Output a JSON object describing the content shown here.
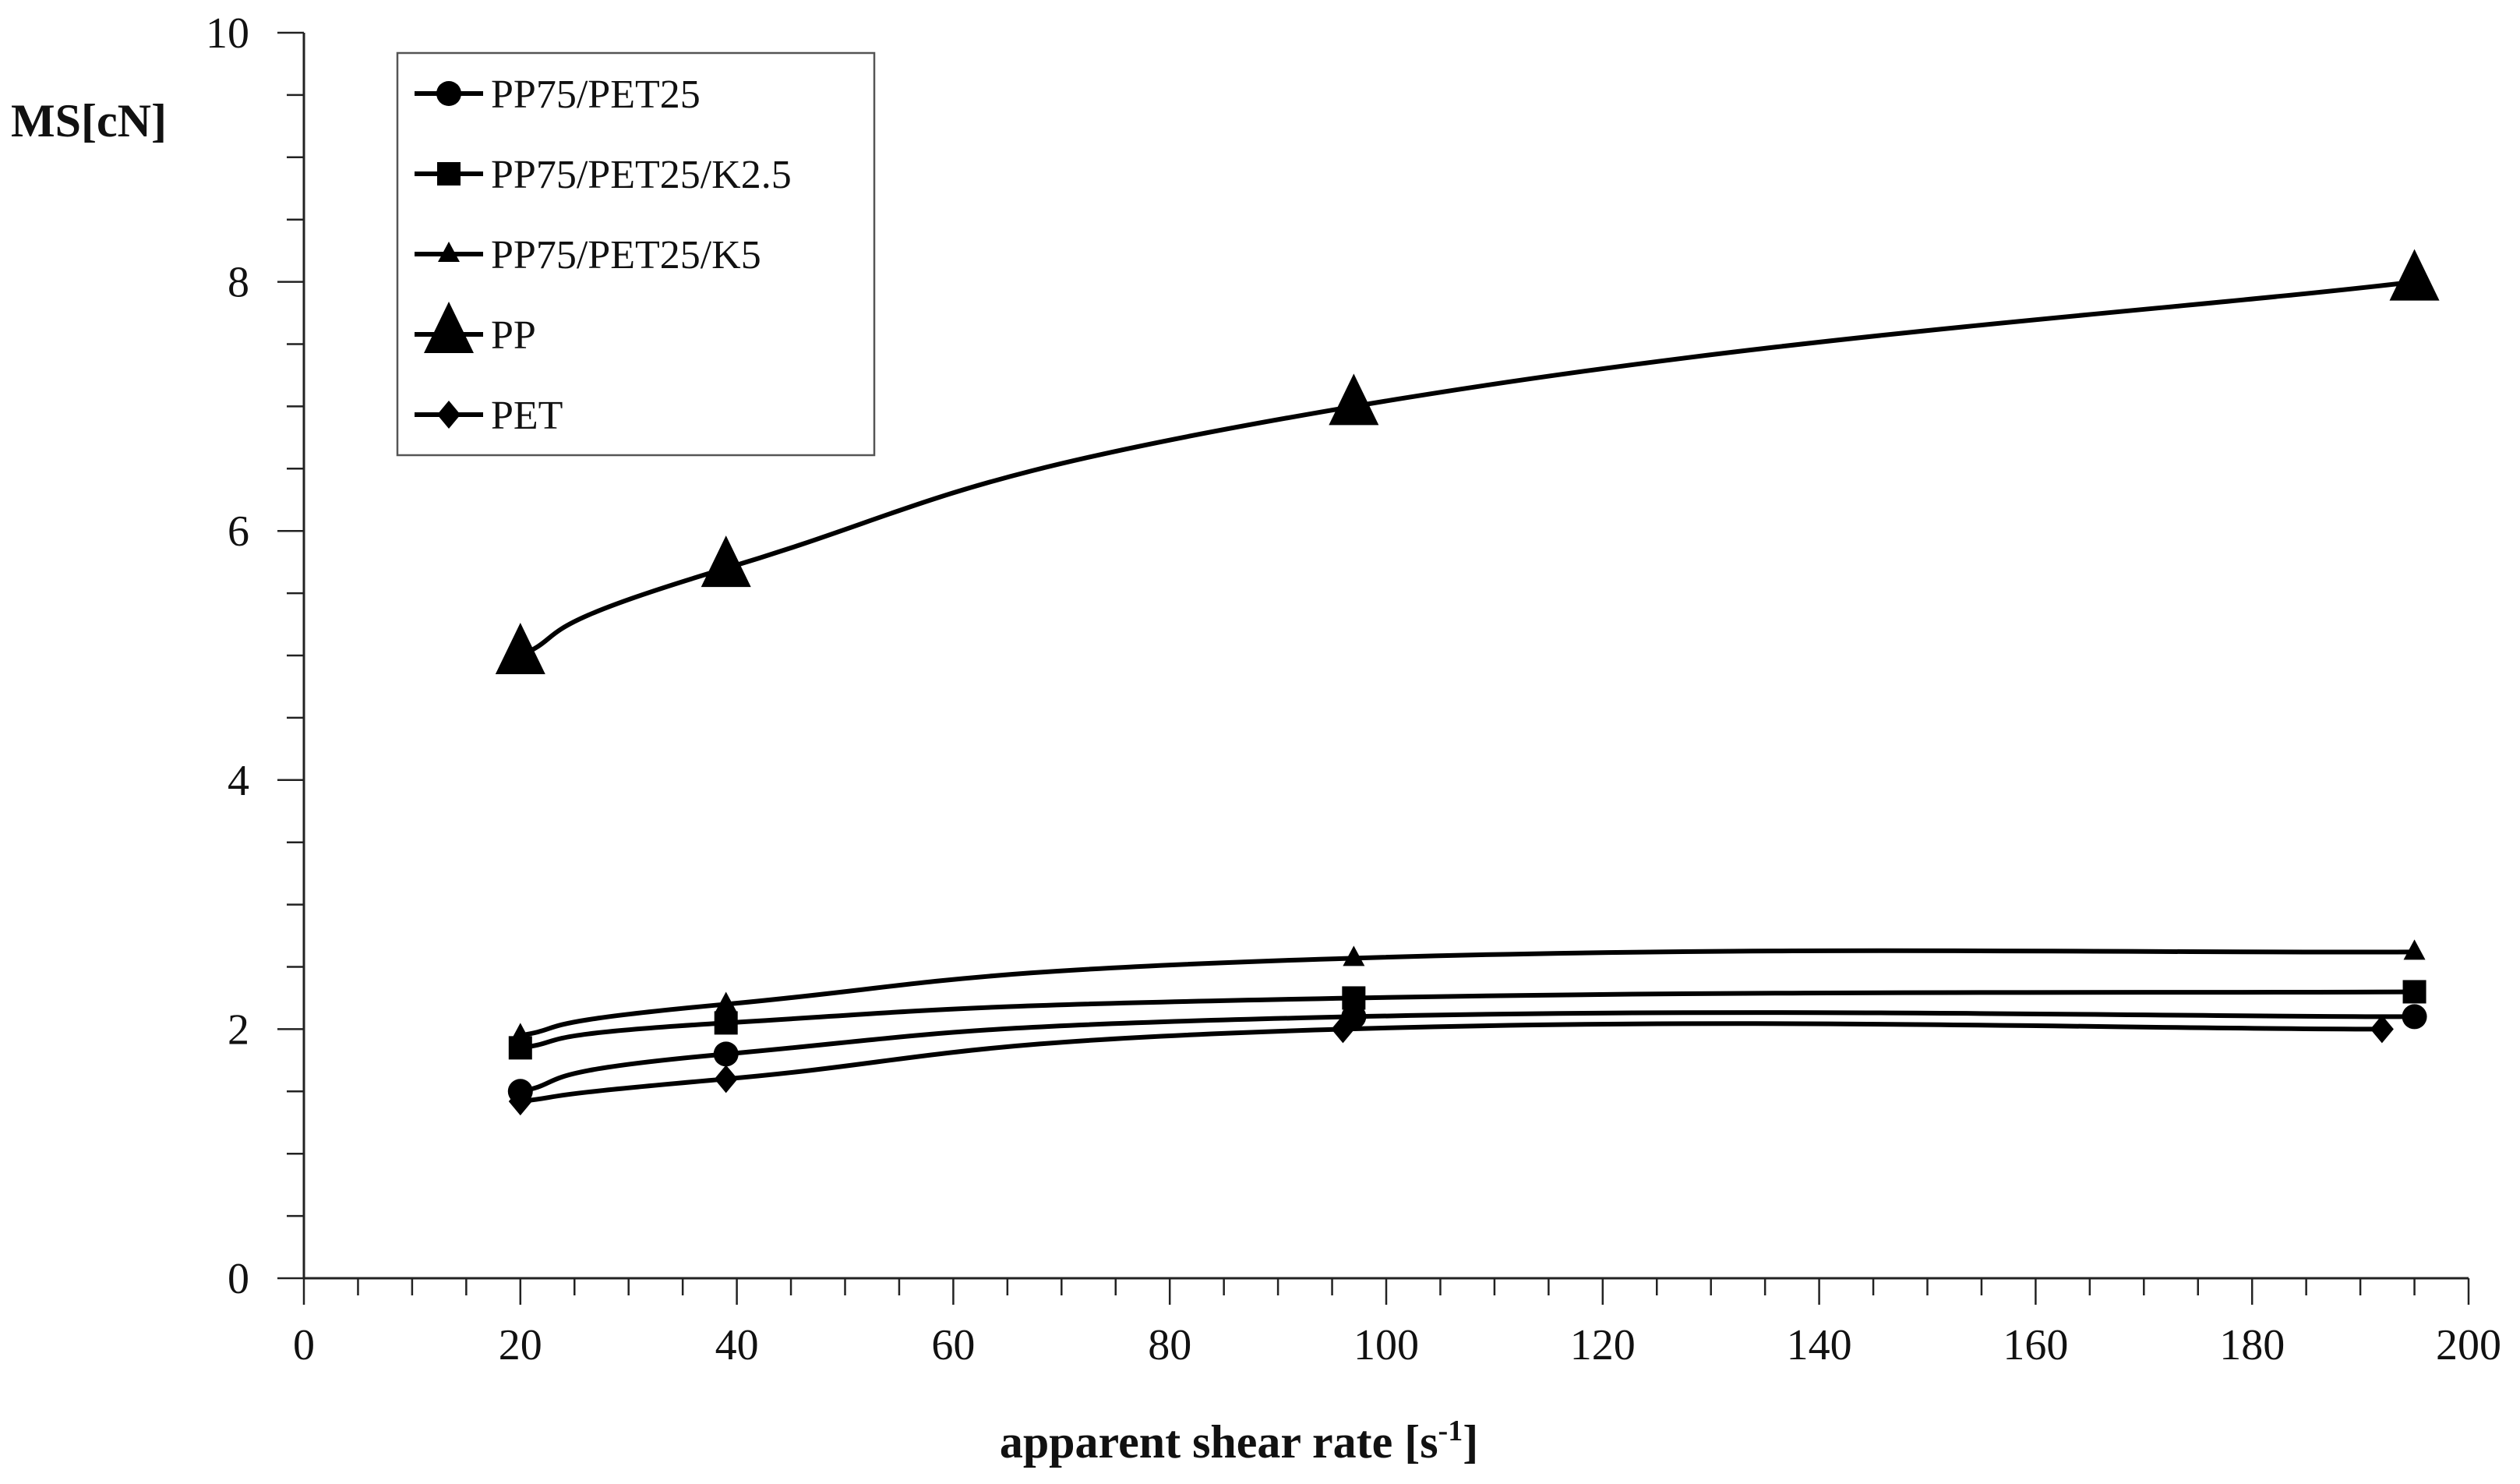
{
  "chart_data": {
    "type": "line",
    "title": "",
    "xlabel": "apparent shear rate [s",
    "xlabel_sup": "-1",
    "xlabel_end": "]",
    "ylabel": "MS[cN]",
    "xlim": [
      0,
      200
    ],
    "ylim": [
      0,
      10
    ],
    "x_ticks": [
      "0",
      "20",
      "40",
      "60",
      "80",
      "100",
      "120",
      "140",
      "160",
      "180",
      "200"
    ],
    "y_ticks": [
      "0",
      "2",
      "4",
      "6",
      "8",
      "10"
    ],
    "grid": false,
    "legend_position": "top-left",
    "series": [
      {
        "name": "PP75/PET25",
        "marker": "circle",
        "points": [
          [
            20,
            1.5
          ],
          [
            39,
            1.8
          ],
          [
            97,
            2.1
          ],
          [
            195,
            2.1
          ]
        ]
      },
      {
        "name": "PP75/PET25/K2.5",
        "marker": "square",
        "points": [
          [
            20,
            1.85
          ],
          [
            39,
            2.05
          ],
          [
            97,
            2.25
          ],
          [
            195,
            2.3
          ]
        ]
      },
      {
        "name": "PP75/PET25/K5",
        "marker": "small-triangle",
        "points": [
          [
            20,
            1.95
          ],
          [
            39,
            2.2
          ],
          [
            97,
            2.57
          ],
          [
            195,
            2.62
          ]
        ]
      },
      {
        "name": "PP",
        "marker": "large-triangle",
        "points": [
          [
            20,
            5.0
          ],
          [
            39,
            5.7
          ],
          [
            97,
            7.0
          ],
          [
            195,
            8.0
          ]
        ]
      },
      {
        "name": "PET",
        "marker": "diamond",
        "points": [
          [
            20,
            1.42
          ],
          [
            39,
            1.6
          ],
          [
            96,
            2.0
          ],
          [
            192,
            2.0
          ]
        ]
      }
    ]
  }
}
